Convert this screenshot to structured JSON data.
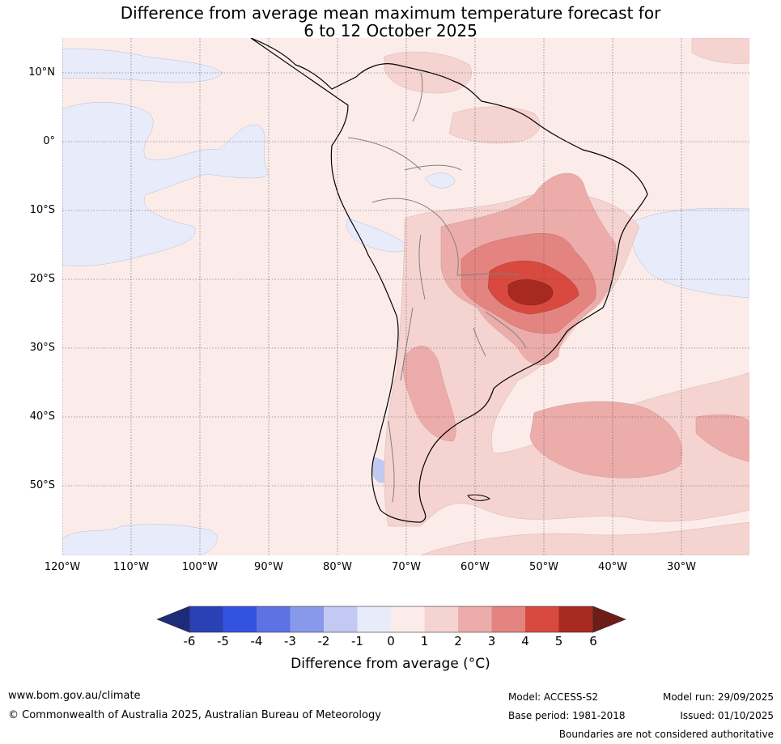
{
  "title": {
    "line1": "Difference from average mean maximum temperature forecast for",
    "line2": "6 to 12 October 2025"
  },
  "map": {
    "latitude_labels": [
      "10°N",
      "0°",
      "10°S",
      "20°S",
      "30°S",
      "40°S",
      "50°S"
    ],
    "longitude_labels": [
      "120°W",
      "110°W",
      "100°W",
      "90°W",
      "80°W",
      "70°W",
      "60°W",
      "50°W",
      "40°W",
      "30°W"
    ],
    "extent": {
      "lon_min": -120,
      "lon_max": -20,
      "lat_min": -60,
      "lat_max": 15
    },
    "anomaly_regions": [
      {
        "name": "central Brazil / Paraguay warm core",
        "max_anomaly_c": 6
      },
      {
        "name": "Patagonian Atlantic shelf",
        "anomaly_range_c": [
          2,
          3
        ]
      },
      {
        "name": "eastern Pacific",
        "anomaly_range_c": [
          -1,
          0
        ]
      },
      {
        "name": "tropical Atlantic off Brazil",
        "anomaly_range_c": [
          -1,
          0
        ]
      }
    ]
  },
  "colorbar": {
    "ticks": [
      "-6",
      "-5",
      "-4",
      "-3",
      "-2",
      "-1",
      "0",
      "1",
      "2",
      "3",
      "4",
      "5",
      "6"
    ],
    "colors": [
      "#1c2c7a",
      "#2a40b5",
      "#3452e0",
      "#5d72e3",
      "#8898ea",
      "#c2c9f2",
      "#e8ebfa",
      "#fbecea",
      "#f5d3d0",
      "#ecadaa",
      "#e38480",
      "#d84a40",
      "#a8291f",
      "#6e1c18"
    ],
    "label": "Difference from average (°C)"
  },
  "footer": {
    "website": "www.bom.gov.au/climate",
    "copyright": "© Commonwealth of Australia 2025, Australian Bureau of Meteorology",
    "model": "Model: ACCESS-S2",
    "base_period": "Base period: 1981-2018",
    "model_run": "Model run: 29/09/2025",
    "issued": "Issued: 01/10/2025",
    "disclaimer": "Boundaries are not considered authoritative"
  }
}
